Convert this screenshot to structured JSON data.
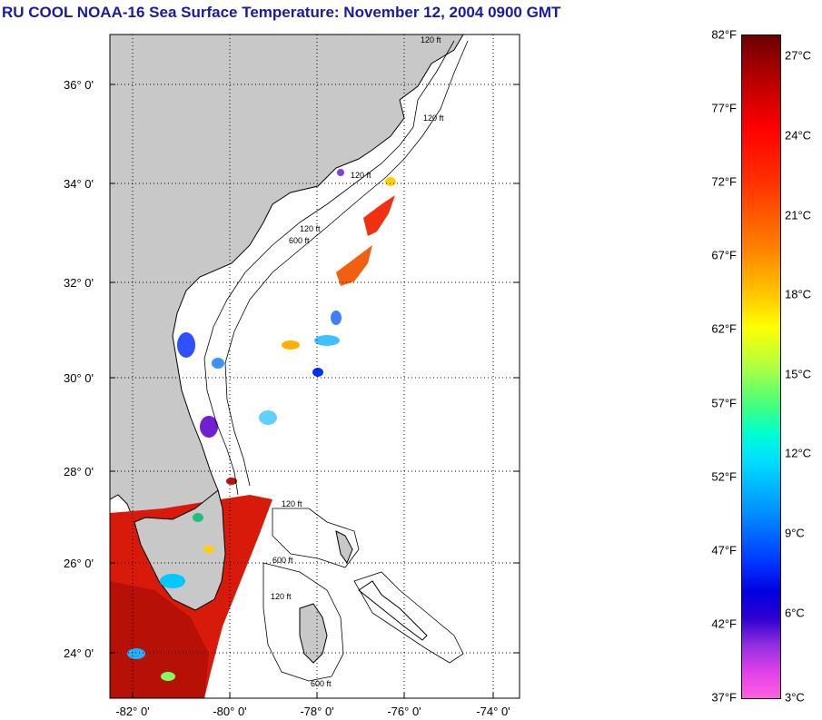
{
  "title": "RU COOL  NOAA-16  Sea Surface Temperature:  November 12, 2004 0900 GMT",
  "map": {
    "lat_labels": [
      "36° 0'",
      "34° 0'",
      "32° 0'",
      "30° 0'",
      "28° 0'",
      "26° 0'",
      "24° 0'"
    ],
    "lon_labels": [
      "-82° 0'",
      "-80° 0'",
      "-78° 0'",
      "-76° 0'",
      "-74° 0'"
    ],
    "contour_labels": [
      "120 ft",
      "120 ft",
      "120 ft",
      "120 ft",
      "600 ft",
      "120 ft",
      "600 ft",
      "600 ft",
      "120 ft"
    ],
    "land_color": "#c8c8c8",
    "frame_color": "#000000"
  },
  "colorbar": {
    "fahrenheit_labels": [
      "82°F",
      "77°F",
      "72°F",
      "67°F",
      "62°F",
      "57°F",
      "52°F",
      "47°F",
      "42°F",
      "37°F"
    ],
    "celsius_labels": [
      "27°C",
      "24°C",
      "21°C",
      "18°C",
      "15°C",
      "12°C",
      "9°C",
      "6°C",
      "3°C"
    ],
    "top_color": "#6b0000",
    "bottom_color": "#ff60e0"
  }
}
